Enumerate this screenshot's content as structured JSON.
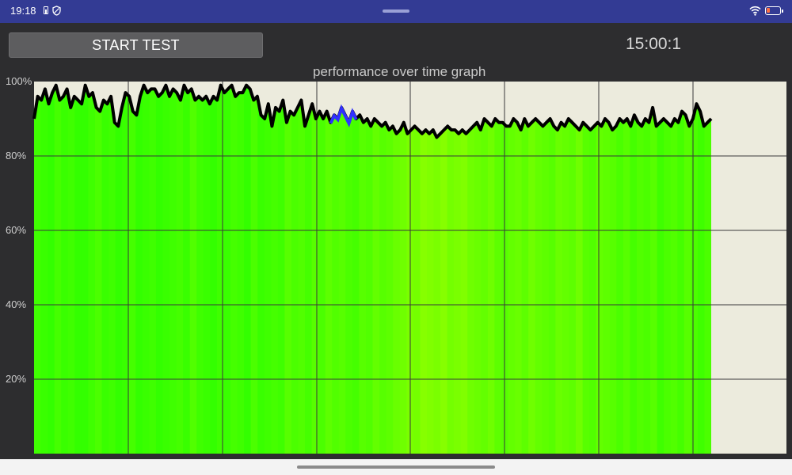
{
  "status_bar": {
    "time": "19:18",
    "left_icons": [
      "battery-saver-icon",
      "shield-icon"
    ],
    "right_icons": [
      "wifi-icon",
      "battery-icon"
    ],
    "battery_level": 0.2,
    "battery_color": "#ff7043"
  },
  "toolbar": {
    "start_label": "START TEST",
    "timer": "15:00:1"
  },
  "graph": {
    "title": "performance over time graph"
  },
  "colors": {
    "statusbar": "#333b94",
    "background": "#2d2d2f",
    "plot_background": "#ecebdd",
    "fill_green": "#33ff00",
    "fill_yellowgreen": "#aaff00",
    "line": "#000000",
    "highlight": "#3030ff"
  },
  "chart_data": {
    "type": "area",
    "title": "performance over time graph",
    "xlabel": "",
    "ylabel": "",
    "ylim": [
      0,
      100
    ],
    "y_ticks": [
      "100%",
      "80%",
      "60%",
      "40%",
      "20%"
    ],
    "grid": true,
    "x_time_fraction_filled": 0.9,
    "series": [
      {
        "values": [
          90,
          96,
          95,
          98,
          94,
          97,
          99,
          95,
          96,
          98,
          93,
          96,
          95,
          94,
          99,
          96,
          97,
          93,
          92,
          95,
          94,
          96,
          89,
          88,
          93,
          97,
          96,
          92,
          91,
          96,
          99,
          97,
          98,
          98,
          96,
          97,
          99,
          96,
          98,
          97,
          95,
          99,
          97,
          98,
          95,
          96,
          95,
          96,
          94,
          96,
          95,
          99,
          97,
          98,
          99,
          96,
          97,
          97,
          99,
          98,
          95,
          96,
          91,
          90,
          94,
          88,
          93,
          92,
          95,
          89,
          92,
          91,
          93,
          95,
          88,
          91,
          94,
          90,
          92,
          90,
          92,
          89,
          91,
          90,
          93,
          91,
          89,
          92,
          90,
          91,
          89,
          90,
          88,
          90,
          89,
          88,
          89,
          87,
          88,
          86,
          87,
          89,
          86,
          87,
          88,
          87,
          86,
          87,
          86,
          87,
          85,
          86,
          87,
          88,
          87,
          87,
          86,
          87,
          86,
          87,
          88,
          89,
          87,
          90,
          89,
          88,
          90,
          89,
          89,
          88,
          88,
          90,
          89,
          87,
          90,
          88,
          89,
          90,
          89,
          88,
          89,
          90,
          88,
          87,
          89,
          88,
          90,
          89,
          88,
          87,
          89,
          88,
          87,
          88,
          89,
          88,
          90,
          89,
          87,
          88,
          90,
          89,
          90,
          88,
          91,
          89,
          88,
          90,
          89,
          93,
          88,
          89,
          90,
          89,
          88,
          90,
          89,
          92,
          91,
          88,
          90,
          94,
          92,
          88,
          89,
          90
        ]
      }
    ],
    "highlight_range": [
      81,
      88
    ],
    "fill_stripes": [
      0.1,
      0.05,
      0.0,
      0.15,
      0.05,
      0.1,
      0.0,
      0.0,
      0.1,
      0.2,
      0.05,
      0.1,
      0.0,
      0.05,
      0.15,
      0.0,
      0.05,
      0.1,
      0.0,
      0.05,
      0.1,
      0.15,
      0.05,
      0.25,
      0.1,
      0.05,
      0.0,
      0.1,
      0.05,
      0.15,
      0.1,
      0.0,
      0.2,
      0.05,
      0.1,
      0.15,
      0.1,
      0.3,
      0.2,
      0.25,
      0.15,
      0.3,
      0.2,
      0.35,
      0.25,
      0.3,
      0.2,
      0.15,
      0.3,
      0.25,
      0.4,
      0.3,
      0.35,
      0.45,
      0.5,
      0.6,
      0.55,
      0.7,
      0.65,
      0.6,
      0.7,
      0.55,
      0.6,
      0.65,
      0.5,
      0.45,
      0.4,
      0.5,
      0.35,
      0.3,
      0.4,
      0.45,
      0.35,
      0.5,
      0.4,
      0.35,
      0.3,
      0.45,
      0.4,
      0.35,
      0.5,
      0.3,
      0.25,
      0.4,
      0.35,
      0.3,
      0.2,
      0.3,
      0.15,
      0.25,
      0.2,
      0.3,
      0.1,
      0.2,
      0.25,
      0.15,
      0.3,
      0.2,
      0.1,
      0.2
    ]
  }
}
